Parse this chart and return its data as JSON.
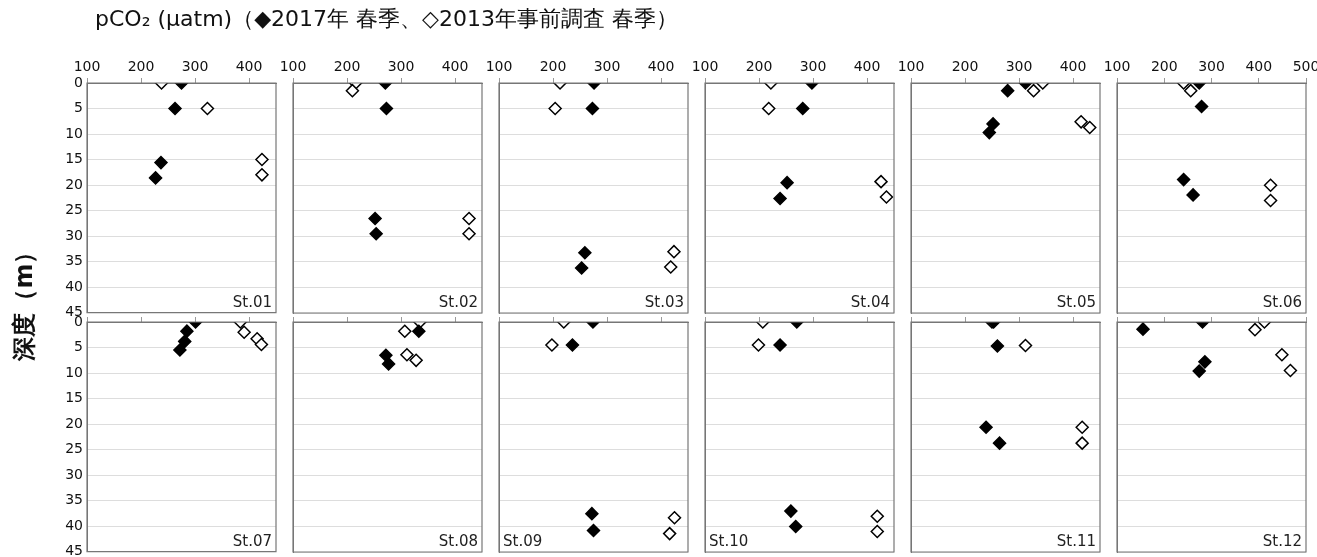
{
  "chart_data": [
    {
      "type": "scatter",
      "title": "pCO₂ (μatm)（◆2017年 春季、◇2013年事前調査 春季）",
      "ylabel": "深度（m）",
      "xlim": [
        100,
        450
      ],
      "xticks": [
        100,
        200,
        300,
        400
      ],
      "ylim": [
        45,
        0
      ],
      "yticks": [
        0,
        5,
        10,
        15,
        20,
        25,
        30,
        35,
        40,
        45
      ],
      "grid": "y",
      "marker": "diamond",
      "annotations": [
        "St.01"
      ],
      "series": [
        {
          "color": "#000000",
          "x": [
            275,
            263,
            237,
            227
          ],
          "values": [
            0,
            5,
            15.6,
            18.6
          ]
        },
        {
          "color": "#ffffff",
          "x": [
            238,
            323,
            424,
            424
          ],
          "values": [
            0,
            5,
            15,
            18
          ]
        }
      ]
    },
    {
      "type": "scatter",
      "xlim": [
        100,
        450
      ],
      "xticks": [
        100,
        200,
        300,
        400
      ],
      "ylim": [
        45,
        0
      ],
      "yticks": [
        0,
        5,
        10,
        15,
        20,
        25,
        30,
        35,
        40,
        45
      ],
      "grid": "y",
      "marker": "diamond",
      "tick_labels": "x",
      "annotations": [
        "St.02"
      ],
      "series": [
        {
          "color": "#000000",
          "x": [
            271,
            273,
            252,
            254
          ],
          "values": [
            0,
            5,
            26.5,
            29.5
          ]
        },
        {
          "color": "#ffffff",
          "x": [
            216,
            210,
            426,
            426
          ],
          "values": [
            0,
            1.5,
            26.5,
            29.5
          ]
        }
      ]
    },
    {
      "type": "scatter",
      "xlim": [
        100,
        450
      ],
      "xticks": [
        100,
        200,
        300,
        400
      ],
      "ylim": [
        45,
        0
      ],
      "yticks": [
        0,
        5,
        10,
        15,
        20,
        25,
        30,
        35,
        40,
        45
      ],
      "grid": "y",
      "marker": "diamond",
      "tick_labels": "x",
      "annotations": [
        "St.03"
      ],
      "series": [
        {
          "color": "#000000",
          "x": [
            276,
            273,
            259,
            253
          ],
          "values": [
            0,
            5,
            33.2,
            36.2
          ]
        },
        {
          "color": "#ffffff",
          "x": [
            213,
            204,
            424,
            418
          ],
          "values": [
            0,
            5,
            33,
            36
          ]
        }
      ]
    },
    {
      "type": "scatter",
      "xlim": [
        100,
        450
      ],
      "xticks": [
        100,
        200,
        300,
        400
      ],
      "ylim": [
        45,
        0
      ],
      "yticks": [
        0,
        5,
        10,
        15,
        20,
        25,
        30,
        35,
        40,
        45
      ],
      "grid": "y",
      "marker": "diamond",
      "tick_labels": "x",
      "annotations": [
        "St.04"
      ],
      "series": [
        {
          "color": "#000000",
          "x": [
            298,
            281,
            252,
            239
          ],
          "values": [
            0,
            5,
            19.5,
            22.6
          ]
        },
        {
          "color": "#ffffff",
          "x": [
            222,
            218,
            426,
            436
          ],
          "values": [
            0,
            5,
            19.3,
            22.3
          ]
        }
      ]
    },
    {
      "type": "scatter",
      "xlim": [
        100,
        450
      ],
      "xticks": [
        100,
        200,
        300,
        400
      ],
      "ylim": [
        45,
        0
      ],
      "yticks": [
        0,
        5,
        10,
        15,
        20,
        25,
        30,
        35,
        40,
        45
      ],
      "grid": "y",
      "marker": "diamond",
      "tick_labels": "x",
      "annotations": [
        "St.05"
      ],
      "series": [
        {
          "color": "#000000",
          "x": [
            312,
            279,
            252,
            245
          ],
          "values": [
            0,
            1.5,
            8,
            9.7
          ]
        },
        {
          "color": "#ffffff",
          "x": [
            344,
            327,
            415,
            431
          ],
          "values": [
            0,
            1.5,
            7.6,
            8.7
          ]
        }
      ]
    },
    {
      "type": "scatter",
      "xlim": [
        100,
        500
      ],
      "xticks": [
        100,
        200,
        300,
        400,
        500
      ],
      "ylim": [
        45,
        0
      ],
      "yticks": [
        0,
        5,
        10,
        15,
        20,
        25,
        30,
        35,
        40,
        45
      ],
      "grid": "y",
      "marker": "diamond",
      "tick_labels": "x",
      "annotations": [
        "St.06"
      ],
      "series": [
        {
          "color": "#000000",
          "x": [
            274,
            279,
            241,
            261
          ],
          "values": [
            0,
            4.6,
            18.9,
            21.9
          ]
        },
        {
          "color": "#ffffff",
          "x": [
            241,
            256,
            425,
            425
          ],
          "values": [
            0,
            1.5,
            20,
            23
          ]
        }
      ]
    },
    {
      "type": "scatter",
      "xlim": [
        100,
        450
      ],
      "xticks": [
        100,
        200,
        300,
        400
      ],
      "ylim": [
        45,
        0
      ],
      "yticks": [
        0,
        5,
        10,
        15,
        20,
        25,
        30,
        35,
        40,
        45
      ],
      "grid": "y",
      "marker": "diamond",
      "tick_labels": "y",
      "annotations": [
        "St.07"
      ],
      "series": [
        {
          "color": "#000000",
          "x": [
            301,
            285,
            281,
            272
          ],
          "values": [
            0,
            1.8,
            3.8,
            5.5
          ]
        },
        {
          "color": "#ffffff",
          "x": [
            384,
            391,
            415,
            423
          ],
          "values": [
            0,
            2,
            3.3,
            4.4
          ]
        }
      ]
    },
    {
      "type": "scatter",
      "xlim": [
        100,
        450
      ],
      "xticks": [
        100,
        200,
        300,
        400
      ],
      "ylim": [
        45,
        0
      ],
      "yticks": [
        0,
        5,
        10,
        15,
        20,
        25,
        30,
        35,
        40,
        45
      ],
      "grid": "y",
      "marker": "diamond",
      "tick_labels": false,
      "annotations": [
        "St.08"
      ],
      "series": [
        {
          "color": "#000000",
          "x": [
            333,
            272,
            277
          ],
          "values": [
            1.8,
            6.5,
            8.2
          ]
        },
        {
          "color": "#ffffff",
          "x": [
            335,
            307,
            311,
            328
          ],
          "values": [
            0,
            1.8,
            6.4,
            7.5
          ]
        }
      ]
    },
    {
      "type": "scatter",
      "xlim": [
        100,
        450
      ],
      "xticks": [
        100,
        200,
        300,
        400
      ],
      "ylim": [
        45,
        0
      ],
      "yticks": [
        0,
        5,
        10,
        15,
        20,
        25,
        30,
        35,
        40,
        45
      ],
      "grid": "y",
      "marker": "diamond",
      "tick_labels": false,
      "annotations": [
        "St.09"
      ],
      "series": [
        {
          "color": "#000000",
          "x": [
            274,
            236,
            272,
            275
          ],
          "values": [
            0,
            4.5,
            37.5,
            40.8
          ]
        },
        {
          "color": "#ffffff",
          "x": [
            220,
            198,
            425,
            416
          ],
          "values": [
            0,
            4.5,
            38.3,
            41.4
          ]
        }
      ]
    },
    {
      "type": "scatter",
      "xlim": [
        100,
        450
      ],
      "xticks": [
        100,
        200,
        300,
        400
      ],
      "ylim": [
        45,
        0
      ],
      "yticks": [
        0,
        5,
        10,
        15,
        20,
        25,
        30,
        35,
        40,
        45
      ],
      "grid": "y",
      "marker": "diamond",
      "tick_labels": false,
      "annotations": [
        "St.10"
      ],
      "series": [
        {
          "color": "#000000",
          "x": [
            270,
            239,
            259,
            268
          ],
          "values": [
            0,
            4.5,
            37,
            40
          ]
        },
        {
          "color": "#ffffff",
          "x": [
            207,
            199,
            419,
            419
          ],
          "values": [
            0,
            4.5,
            38,
            41
          ]
        }
      ]
    },
    {
      "type": "scatter",
      "xlim": [
        100,
        450
      ],
      "xticks": [
        100,
        200,
        300,
        400
      ],
      "ylim": [
        45,
        0
      ],
      "yticks": [
        0,
        5,
        10,
        15,
        20,
        25,
        30,
        35,
        40,
        45
      ],
      "grid": "y",
      "marker": "diamond",
      "tick_labels": false,
      "annotations": [
        "St.11"
      ],
      "series": [
        {
          "color": "#000000",
          "x": [
            253,
            260,
            239,
            264
          ],
          "values": [
            0,
            4.7,
            20.6,
            23.7
          ]
        },
        {
          "color": "#ffffff",
          "x": [
            250,
            312,
            417,
            417
          ],
          "values": [
            0,
            4.6,
            20.6,
            23.7
          ]
        }
      ]
    },
    {
      "type": "scatter",
      "xlim": [
        100,
        500
      ],
      "xticks": [
        100,
        200,
        300,
        400,
        500
      ],
      "ylim": [
        45,
        0
      ],
      "yticks": [
        0,
        5,
        10,
        15,
        20,
        25,
        30,
        35,
        40,
        45
      ],
      "grid": "y",
      "marker": "diamond",
      "tick_labels": false,
      "annotations": [
        "St.12"
      ],
      "series": [
        {
          "color": "#000000",
          "x": [
            155,
            281,
            286,
            274
          ],
          "values": [
            1.4,
            0,
            7.8,
            9.6
          ]
        },
        {
          "color": "#ffffff",
          "x": [
            412,
            392,
            449,
            467
          ],
          "values": [
            0,
            1.5,
            6.4,
            9.5
          ]
        }
      ]
    }
  ]
}
